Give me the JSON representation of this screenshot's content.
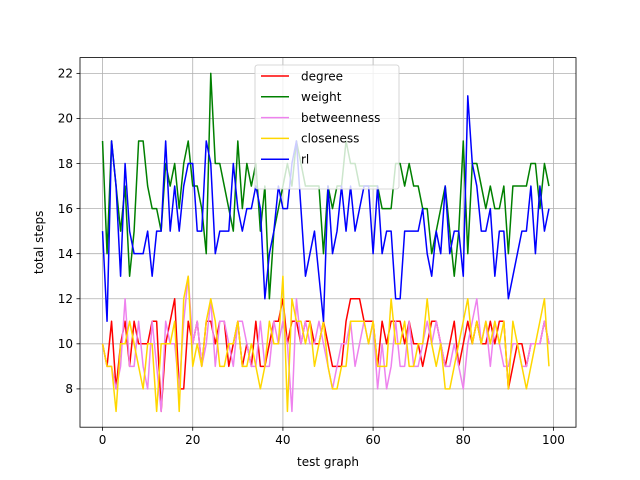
{
  "chart_data": {
    "type": "line",
    "title": "",
    "xlabel": "test graph",
    "ylabel": "total steps",
    "xlim": [
      -5,
      105
    ],
    "ylim": [
      6.3,
      22.7
    ],
    "xticks": [
      "0",
      "20",
      "40",
      "60",
      "80",
      "100"
    ],
    "yticks": [
      "8",
      "10",
      "12",
      "14",
      "16",
      "18",
      "20",
      "22"
    ],
    "grid": true,
    "legend": "top-center",
    "x": [
      0,
      1,
      2,
      3,
      4,
      5,
      6,
      7,
      8,
      9,
      10,
      11,
      12,
      13,
      14,
      15,
      16,
      17,
      18,
      19,
      20,
      21,
      22,
      23,
      24,
      25,
      26,
      27,
      28,
      29,
      30,
      31,
      32,
      33,
      34,
      35,
      36,
      37,
      38,
      39,
      40,
      41,
      42,
      43,
      44,
      45,
      46,
      47,
      48,
      49,
      50,
      51,
      52,
      53,
      54,
      55,
      56,
      57,
      58,
      59,
      60,
      61,
      62,
      63,
      64,
      65,
      66,
      67,
      68,
      69,
      70,
      71,
      72,
      73,
      74,
      75,
      76,
      77,
      78,
      79,
      80,
      81,
      82,
      83,
      84,
      85,
      86,
      87,
      88,
      89,
      90,
      91,
      92,
      93,
      94,
      95,
      96,
      97,
      98,
      99
    ],
    "series": [
      {
        "name": "degree",
        "color": "#ff0000",
        "values": [
          10,
          9,
          11,
          8,
          10,
          11,
          9,
          11,
          10,
          10,
          10,
          11,
          11,
          7,
          10,
          11,
          12,
          8,
          8,
          11,
          10,
          11,
          9,
          11,
          11,
          10,
          11,
          11,
          9,
          10,
          11,
          9,
          10,
          9,
          11,
          9,
          9,
          10,
          11,
          11,
          12,
          10,
          11,
          11,
          10,
          11,
          11,
          10,
          10,
          11,
          10,
          9,
          9,
          9,
          11,
          12,
          12,
          12,
          11,
          11,
          11,
          9,
          11,
          10,
          11,
          11,
          11,
          10,
          11,
          10,
          10,
          9,
          10,
          11,
          11,
          10,
          9,
          10,
          11,
          9,
          10,
          11,
          10,
          11,
          10,
          10,
          11,
          10,
          11,
          11,
          8,
          9,
          10,
          10,
          9,
          10,
          10,
          10,
          11,
          10
        ]
      },
      {
        "name": "weight",
        "color": "#008000",
        "values": [
          19,
          14,
          19,
          17,
          15,
          17,
          13,
          15,
          19,
          19,
          17,
          16,
          16,
          15,
          18,
          17,
          18,
          16,
          18,
          19,
          17,
          17,
          16,
          14,
          22,
          18,
          18,
          17,
          16,
          15,
          19,
          16,
          18,
          17,
          18,
          15,
          17,
          12,
          15,
          16,
          17,
          18,
          17,
          19,
          18,
          17,
          17,
          17,
          17,
          14,
          17,
          16,
          17,
          17,
          19,
          18,
          18,
          17,
          17,
          17,
          17,
          17,
          16,
          16,
          16,
          18,
          18,
          17,
          18,
          17,
          17,
          16,
          16,
          14,
          15,
          16,
          17,
          15,
          13,
          15,
          19,
          14,
          18,
          18,
          17,
          16,
          17,
          16,
          16,
          17,
          14,
          17,
          17,
          17,
          17,
          18,
          18,
          16,
          18,
          17
        ]
      },
      {
        "name": "betweenness",
        "color": "#ee82ee",
        "values": [
          10,
          9,
          9,
          8,
          9,
          12,
          9,
          9,
          11,
          9,
          8,
          11,
          9,
          7,
          11,
          10,
          10,
          8,
          11,
          13,
          10,
          11,
          9,
          10,
          12,
          9,
          11,
          11,
          10,
          9,
          11,
          11,
          10,
          9,
          9,
          11,
          9,
          9,
          11,
          10,
          11,
          10,
          7,
          12,
          10,
          11,
          10,
          10,
          11,
          10,
          9,
          8,
          9,
          10,
          10,
          11,
          9,
          10,
          11,
          10,
          11,
          8,
          10,
          8,
          9,
          11,
          9,
          9,
          11,
          9,
          9,
          10,
          11,
          10,
          11,
          10,
          9,
          9,
          10,
          9,
          8,
          10,
          11,
          12,
          10,
          11,
          9,
          11,
          10,
          9,
          9,
          10,
          10,
          9,
          9,
          10,
          10,
          10,
          11,
          10
        ]
      },
      {
        "name": "closeness",
        "color": "#ffd700",
        "values": [
          10,
          9,
          9,
          7,
          10,
          10,
          11,
          10,
          9,
          8,
          10,
          10,
          7,
          10,
          10,
          10,
          11,
          7,
          12,
          13,
          9,
          10,
          9,
          11,
          12,
          11,
          9,
          9,
          10,
          10,
          11,
          9,
          9,
          10,
          9,
          8,
          9,
          11,
          10,
          10,
          13,
          7,
          12,
          11,
          11,
          10,
          11,
          9,
          10,
          11,
          9,
          8,
          8,
          9,
          9,
          11,
          11,
          11,
          11,
          10,
          11,
          9,
          9,
          9,
          12,
          10,
          10,
          11,
          9,
          9,
          10,
          10,
          12,
          10,
          9,
          10,
          8,
          8,
          9,
          10,
          11,
          12,
          10,
          11,
          10,
          11,
          10,
          11,
          10,
          11,
          8,
          11,
          10,
          9,
          8,
          9,
          10,
          11,
          12,
          9
        ]
      },
      {
        "name": "rl",
        "color": "#0000ff",
        "values": [
          15,
          11,
          19,
          17,
          13,
          18,
          15,
          14,
          14,
          14,
          15,
          13,
          15,
          15,
          19,
          15,
          17,
          15,
          17,
          18,
          18,
          15,
          15,
          19,
          18,
          14,
          15,
          15,
          15,
          18,
          16,
          15,
          16,
          16,
          17,
          16,
          12,
          14,
          15,
          17,
          16,
          16,
          18,
          19,
          16,
          13,
          14,
          15,
          13,
          11,
          17,
          14,
          15,
          17,
          15,
          17,
          15,
          16,
          17,
          17,
          14,
          17,
          14,
          15,
          15,
          12,
          12,
          15,
          15,
          15,
          15,
          16,
          14,
          13,
          15,
          14,
          17,
          14,
          15,
          15,
          13,
          21,
          18,
          17,
          15,
          15,
          16,
          13,
          15,
          15,
          12,
          13,
          14,
          15,
          15,
          17,
          14,
          17,
          15,
          16
        ]
      }
    ]
  }
}
